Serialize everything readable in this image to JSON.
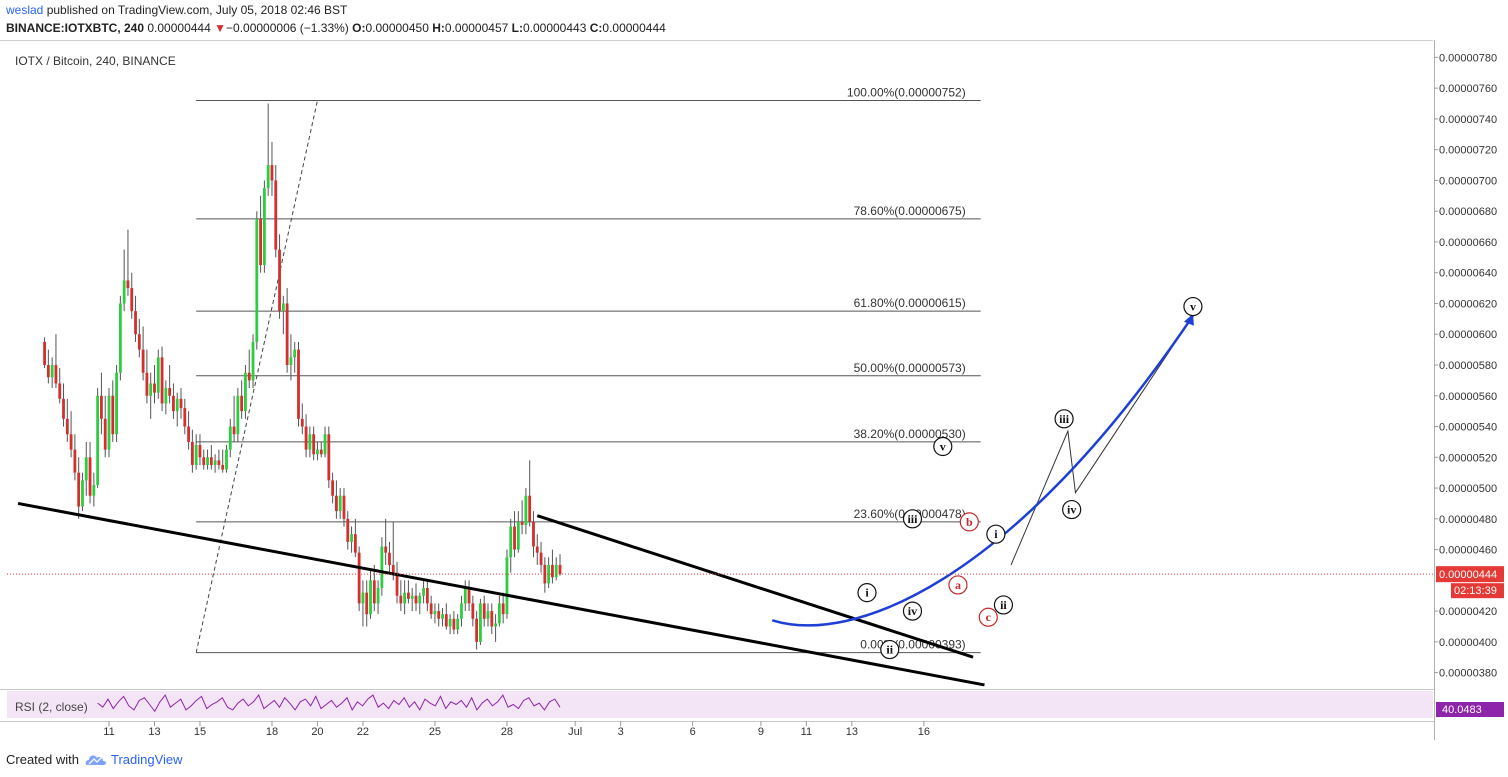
{
  "header": {
    "author": "weslad",
    "published_text": "published on TradingView.com, July 05, 2018 02:46 BST",
    "symbol_line": "BINANCE:IOTXBTC, 240",
    "last": "0.00000444",
    "change_arrow": "▼",
    "change": "−0.00000006 (−1.33%)",
    "o_label": "O:",
    "o": "0.00000450",
    "h_label": "H:",
    "h": "0.00000457",
    "l_label": "L:",
    "l": "0.00000443",
    "c_label": "C:",
    "c": "0.00000444"
  },
  "footer": {
    "created_with": "Created with",
    "brand": "TradingView"
  },
  "chart_data": {
    "type": "candlestick",
    "title": "IOTX / Bitcoin, 240, BINANCE",
    "ylim": [
      3.7e-06,
      7.9e-06
    ],
    "y_ticks": [
      "0.00000780",
      "0.00000760",
      "0.00000740",
      "0.00000720",
      "0.00000700",
      "0.00000680",
      "0.00000660",
      "0.00000640",
      "0.00000620",
      "0.00000600",
      "0.00000580",
      "0.00000560",
      "0.00000540",
      "0.00000520",
      "0.00000500",
      "0.00000480",
      "0.00000460",
      "0.00000420",
      "0.00000400",
      "0.00000380"
    ],
    "x_ticks": [
      {
        "label": "11",
        "bar": 25
      },
      {
        "label": "13",
        "bar": 37
      },
      {
        "label": "15",
        "bar": 49
      },
      {
        "label": "18",
        "bar": 68
      },
      {
        "label": "20",
        "bar": 80
      },
      {
        "label": "22",
        "bar": 92
      },
      {
        "label": "25",
        "bar": 111
      },
      {
        "label": "28",
        "bar": 130
      },
      {
        "label": "Jul",
        "bar": 148
      },
      {
        "label": "3",
        "bar": 160
      },
      {
        "label": "6",
        "bar": 179
      },
      {
        "label": "9",
        "bar": 197
      },
      {
        "label": "11",
        "bar": 209
      },
      {
        "label": "13",
        "bar": 221
      },
      {
        "label": "16",
        "bar": 240
      }
    ],
    "bar_start": 8,
    "colors": {
      "up": "#2ecc40",
      "down": "#d32f2f",
      "wick": "#555555",
      "fib": "#555555",
      "curve": "#1e3fd6",
      "price": "#e53935"
    },
    "candles": [
      [
        5.95e-06,
        5.98e-06,
        5.78e-06,
        5.8e-06
      ],
      [
        5.8e-06,
        5.9e-06,
        5.68e-06,
        5.72e-06
      ],
      [
        5.72e-06,
        5.85e-06,
        5.65e-06,
        5.8e-06
      ],
      [
        5.8e-06,
        6e-06,
        5.65e-06,
        5.68e-06
      ],
      [
        5.68e-06,
        5.78e-06,
        5.55e-06,
        5.58e-06
      ],
      [
        5.58e-06,
        5.68e-06,
        5.4e-06,
        5.45e-06
      ],
      [
        5.45e-06,
        5.58e-06,
        5.3e-06,
        5.35e-06
      ],
      [
        5.35e-06,
        5.5e-06,
        5.2e-06,
        5.25e-06
      ],
      [
        5.25e-06,
        5.35e-06,
        5.05e-06,
        5.1e-06
      ],
      [
        5.1e-06,
        5.2e-06,
        4.8e-06,
        4.88e-06
      ],
      [
        4.88e-06,
        5.1e-06,
        4.85e-06,
        5.05e-06
      ],
      [
        5.05e-06,
        5.3e-06,
        4.95e-06,
        5.2e-06
      ],
      [
        5.2e-06,
        5.3e-06,
        4.9e-06,
        4.95e-06
      ],
      [
        4.95e-06,
        5.1e-06,
        4.88e-06,
        5.02e-06
      ],
      [
        5.02e-06,
        5.65e-06,
        5e-06,
        5.6e-06
      ],
      [
        5.6e-06,
        5.75e-06,
        5.35e-06,
        5.45e-06
      ],
      [
        5.45e-06,
        5.6e-06,
        5.2e-06,
        5.25e-06
      ],
      [
        5.25e-06,
        5.65e-06,
        5.2e-06,
        5.6e-06
      ],
      [
        5.6e-06,
        5.7e-06,
        5.3e-06,
        5.35e-06
      ],
      [
        5.35e-06,
        5.8e-06,
        5.3e-06,
        5.75e-06
      ],
      [
        5.75e-06,
        6.25e-06,
        5.7e-06,
        6.2e-06
      ],
      [
        6.2e-06,
        6.55e-06,
        6.15e-06,
        6.35e-06
      ],
      [
        6.35e-06,
        6.68e-06,
        6.25e-06,
        6.3e-06
      ],
      [
        6.3e-06,
        6.4e-06,
        6.1e-06,
        6.15e-06
      ],
      [
        6.15e-06,
        6.25e-06,
        5.95e-06,
        6e-06
      ],
      [
        6e-06,
        6.1e-06,
        5.85e-06,
        5.9e-06
      ],
      [
        5.9e-06,
        6.05e-06,
        5.7e-06,
        5.75e-06
      ],
      [
        5.75e-06,
        5.9e-06,
        5.55e-06,
        5.6e-06
      ],
      [
        5.6e-06,
        5.75e-06,
        5.45e-06,
        5.68e-06
      ],
      [
        5.68e-06,
        5.8e-06,
        5.55e-06,
        5.62e-06
      ],
      [
        5.62e-06,
        5.9e-06,
        5.58e-06,
        5.85e-06
      ],
      [
        5.85e-06,
        5.92e-06,
        5.5e-06,
        5.55e-06
      ],
      [
        5.55e-06,
        5.7e-06,
        5.48e-06,
        5.65e-06
      ],
      [
        5.65e-06,
        5.8e-06,
        5.55e-06,
        5.6e-06
      ],
      [
        5.6e-06,
        5.68e-06,
        5.45e-06,
        5.5e-06
      ],
      [
        5.5e-06,
        5.62e-06,
        5.4e-06,
        5.58e-06
      ],
      [
        5.58e-06,
        5.65e-06,
        5.45e-06,
        5.52e-06
      ],
      [
        5.52e-06,
        5.58e-06,
        5.35e-06,
        5.4e-06
      ],
      [
        5.4e-06,
        5.5e-06,
        5.25e-06,
        5.3e-06
      ],
      [
        5.3e-06,
        5.38e-06,
        5.1e-06,
        5.15e-06
      ],
      [
        5.15e-06,
        5.35e-06,
        5.12e-06,
        5.28e-06
      ],
      [
        5.28e-06,
        5.35e-06,
        5.15e-06,
        5.2e-06
      ],
      [
        5.2e-06,
        5.25e-06,
        5.12e-06,
        5.15e-06
      ],
      [
        5.15e-06,
        5.25e-06,
        5.12e-06,
        5.2e-06
      ],
      [
        5.2e-06,
        5.28e-06,
        5.12e-06,
        5.15e-06
      ],
      [
        5.15e-06,
        5.22e-06,
        5.1e-06,
        5.18e-06
      ],
      [
        5.18e-06,
        5.25e-06,
        5.12e-06,
        5.15e-06
      ],
      [
        5.15e-06,
        5.25e-06,
        5.1e-06,
        5.12e-06
      ],
      [
        5.12e-06,
        5.28e-06,
        5.1e-06,
        5.25e-06
      ],
      [
        5.25e-06,
        5.45e-06,
        5.2e-06,
        5.4e-06
      ],
      [
        5.4e-06,
        5.6e-06,
        5.3e-06,
        5.35e-06
      ],
      [
        5.35e-06,
        5.65e-06,
        5.3e-06,
        5.6e-06
      ],
      [
        5.6e-06,
        5.7e-06,
        5.45e-06,
        5.5e-06
      ],
      [
        5.5e-06,
        5.8e-06,
        5.45e-06,
        5.75e-06
      ],
      [
        5.75e-06,
        5.9e-06,
        5.65e-06,
        5.7e-06
      ],
      [
        5.7e-06,
        6e-06,
        5.65e-06,
        5.95e-06
      ],
      [
        5.95e-06,
        6.8e-06,
        5.9e-06,
        6.75e-06
      ],
      [
        6.75e-06,
        6.9e-06,
        6.4e-06,
        6.45e-06
      ],
      [
        6.45e-06,
        7e-06,
        6.4e-06,
        6.95e-06
      ],
      [
        6.95e-06,
        7.5e-06,
        6.9e-06,
        7.1e-06
      ],
      [
        7.1e-06,
        7.25e-06,
        6.9e-06,
        7e-06
      ],
      [
        7e-06,
        7.1e-06,
        6.5e-06,
        6.55e-06
      ],
      [
        6.55e-06,
        6.65e-06,
        6.1e-06,
        6.15e-06
      ],
      [
        6.15e-06,
        6.25e-06,
        6e-06,
        6.2e-06
      ],
      [
        6.2e-06,
        6.3e-06,
        5.75e-06,
        5.8e-06
      ],
      [
        5.8e-06,
        6e-06,
        5.7e-06,
        5.85e-06
      ],
      [
        5.85e-06,
        5.95e-06,
        5.75e-06,
        5.9e-06
      ],
      [
        5.9e-06,
        5.95e-06,
        5.4e-06,
        5.45e-06
      ],
      [
        5.45e-06,
        5.55e-06,
        5.35e-06,
        5.4e-06
      ],
      [
        5.4e-06,
        5.48e-06,
        5.2e-06,
        5.25e-06
      ],
      [
        5.25e-06,
        5.4e-06,
        5.2e-06,
        5.35e-06
      ],
      [
        5.35e-06,
        5.4e-06,
        5.18e-06,
        5.22e-06
      ],
      [
        5.22e-06,
        5.3e-06,
        5.18e-06,
        5.25e-06
      ],
      [
        5.25e-06,
        5.3e-06,
        5.2e-06,
        5.22e-06
      ],
      [
        5.22e-06,
        5.4e-06,
        5.2e-06,
        5.35e-06
      ],
      [
        5.35e-06,
        5.4e-06,
        5e-06,
        5.05e-06
      ],
      [
        5.05e-06,
        5.1e-06,
        4.9e-06,
        4.95e-06
      ],
      [
        4.95e-06,
        5.05e-06,
        4.8e-06,
        4.85e-06
      ],
      [
        4.85e-06,
        5e-06,
        4.8e-06,
        4.95e-06
      ],
      [
        4.95e-06,
        5e-06,
        4.75e-06,
        4.8e-06
      ],
      [
        4.8e-06,
        4.85e-06,
        4.6e-06,
        4.65e-06
      ],
      [
        4.65e-06,
        4.75e-06,
        4.58e-06,
        4.7e-06
      ],
      [
        4.7e-06,
        4.8e-06,
        4.55e-06,
        4.58e-06
      ],
      [
        4.58e-06,
        4.62e-06,
        4.2e-06,
        4.25e-06
      ],
      [
        4.25e-06,
        4.4e-06,
        4.1e-06,
        4.32e-06
      ],
      [
        4.32e-06,
        4.4e-06,
        4.1e-06,
        4.18e-06
      ],
      [
        4.18e-06,
        4.48e-06,
        4.15e-06,
        4.4e-06
      ],
      [
        4.4e-06,
        4.5e-06,
        4.2e-06,
        4.25e-06
      ],
      [
        4.25e-06,
        4.4e-06,
        4.18e-06,
        4.35e-06
      ],
      [
        4.35e-06,
        4.68e-06,
        4.3e-06,
        4.62e-06
      ],
      [
        4.62e-06,
        4.8e-06,
        4.5e-06,
        4.58e-06
      ],
      [
        4.58e-06,
        4.65e-06,
        4.45e-06,
        4.5e-06
      ],
      [
        4.5e-06,
        4.78e-06,
        4.4e-06,
        4.45e-06
      ],
      [
        4.45e-06,
        4.52e-06,
        4.25e-06,
        4.3e-06
      ],
      [
        4.3e-06,
        4.4e-06,
        4.2e-06,
        4.25e-06
      ],
      [
        4.25e-06,
        4.4e-06,
        4.18e-06,
        4.32e-06
      ],
      [
        4.32e-06,
        4.4e-06,
        4.25e-06,
        4.28e-06
      ],
      [
        4.28e-06,
        4.35e-06,
        4.2e-06,
        4.3e-06
      ],
      [
        4.3e-06,
        4.38e-06,
        4.2e-06,
        4.25e-06
      ],
      [
        4.25e-06,
        4.32e-06,
        4.18e-06,
        4.3e-06
      ],
      [
        4.3e-06,
        4.4e-06,
        4.25e-06,
        4.35e-06
      ],
      [
        4.35e-06,
        4.4e-06,
        4.2e-06,
        4.25e-06
      ],
      [
        4.25e-06,
        4.3e-06,
        4.15e-06,
        4.18e-06
      ],
      [
        4.18e-06,
        4.25e-06,
        4.12e-06,
        4.2e-06
      ],
      [
        4.2e-06,
        4.25e-06,
        4.1e-06,
        4.15e-06
      ],
      [
        4.15e-06,
        4.22e-06,
        4.1e-06,
        4.18e-06
      ],
      [
        4.18e-06,
        4.25e-06,
        4.08e-06,
        4.1e-06
      ],
      [
        4.1e-06,
        4.18e-06,
        4.05e-06,
        4.15e-06
      ],
      [
        4.15e-06,
        4.2e-06,
        4.05e-06,
        4.08e-06
      ],
      [
        4.08e-06,
        4.18e-06,
        4.05e-06,
        4.15e-06
      ],
      [
        4.15e-06,
        4.3e-06,
        4.1e-06,
        4.25e-06
      ],
      [
        4.25e-06,
        4.4e-06,
        4.2e-06,
        4.35e-06
      ],
      [
        4.35e-06,
        4.4e-06,
        4.2e-06,
        4.25e-06
      ],
      [
        4.25e-06,
        4.3e-06,
        4.1e-06,
        4.15e-06
      ],
      [
        4.15e-06,
        4.2e-06,
        3.95e-06,
        4e-06
      ],
      [
        4e-06,
        4.28e-06,
        3.98e-06,
        4.25e-06
      ],
      [
        4.25e-06,
        4.3e-06,
        4.1e-06,
        4.15e-06
      ],
      [
        4.15e-06,
        4.25e-06,
        4.1e-06,
        4.2e-06
      ],
      [
        4.2e-06,
        4.25e-06,
        4.05e-06,
        4.1e-06
      ],
      [
        4.1e-06,
        4.18e-06,
        4e-06,
        4.12e-06
      ],
      [
        4.12e-06,
        4.3e-06,
        4.1e-06,
        4.25e-06
      ],
      [
        4.25e-06,
        4.32e-06,
        4.12e-06,
        4.18e-06
      ],
      [
        4.18e-06,
        4.6e-06,
        4.15e-06,
        4.55e-06
      ],
      [
        4.55e-06,
        4.8e-06,
        4.45e-06,
        4.75e-06
      ],
      [
        4.75e-06,
        4.85e-06,
        4.55e-06,
        4.6e-06
      ],
      [
        4.6e-06,
        4.85e-06,
        4.58e-06,
        4.78e-06
      ],
      [
        4.78e-06,
        4.92e-06,
        4.7e-06,
        4.76e-06
      ],
      [
        4.76e-06,
        5e-06,
        4.7e-06,
        4.95e-06
      ],
      [
        4.95e-06,
        5.18e-06,
        4.75e-06,
        4.78e-06
      ],
      [
        4.78e-06,
        4.85e-06,
        4.55e-06,
        4.62e-06
      ],
      [
        4.62e-06,
        4.7e-06,
        4.5e-06,
        4.58e-06
      ],
      [
        4.58e-06,
        4.65e-06,
        4.45e-06,
        4.5e-06
      ],
      [
        4.5e-06,
        4.55e-06,
        4.32e-06,
        4.38e-06
      ],
      [
        4.38e-06,
        4.55e-06,
        4.35e-06,
        4.5e-06
      ],
      [
        4.5e-06,
        4.6e-06,
        4.38e-06,
        4.42e-06
      ],
      [
        4.42e-06,
        4.55e-06,
        4.4e-06,
        4.5e-06
      ],
      [
        4.5e-06,
        4.57e-06,
        4.43e-06,
        4.44e-06
      ]
    ],
    "fib_levels": [
      {
        "label": "100.00%(0.00000752)",
        "value": 7.52e-06
      },
      {
        "label": "78.60%(0.00000675)",
        "value": 6.75e-06
      },
      {
        "label": "61.80%(0.00000615)",
        "value": 6.15e-06
      },
      {
        "label": "50.00%(0.00000573)",
        "value": 5.73e-06
      },
      {
        "label": "38.20%(0.00000530)",
        "value": 5.3e-06
      },
      {
        "label": "23.60%(0.00000478)",
        "value": 4.78e-06
      },
      {
        "label": "0.00%(0.00000393)",
        "value": 3.93e-06
      }
    ],
    "fib_anchor": {
      "start_bar": 48,
      "end_bar": 255
    },
    "fib_trend": {
      "from": {
        "bar": 48,
        "value": 3.93e-06
      },
      "to": {
        "bar": 80,
        "value": 7.52e-06
      }
    },
    "trendlines": [
      {
        "from": {
          "bar": 1,
          "value": 4.9e-06
        },
        "to": {
          "bar": 256,
          "value": 3.72e-06
        }
      },
      {
        "from": {
          "bar": 138,
          "value": 4.82e-06
        },
        "to": {
          "bar": 253,
          "value": 3.9e-06
        }
      }
    ],
    "projection_path": [
      {
        "bar": 263,
        "value": 4.5e-06
      },
      {
        "bar": 278,
        "value": 5.37e-06
      },
      {
        "bar": 280,
        "value": 4.97e-06
      },
      {
        "bar": 311,
        "value": 6.12e-06
      }
    ],
    "curve": [
      {
        "bar": 200,
        "value": 4.14e-06
      },
      {
        "bar": 221,
        "value": 3.98e-06
      },
      {
        "bar": 263,
        "value": 4.37e-06
      },
      {
        "bar": 311,
        "value": 6.12e-06
      }
    ],
    "wave_labels": [
      {
        "text": "i",
        "bar": 225,
        "value": 4.32e-06,
        "color": "black"
      },
      {
        "text": "ii",
        "bar": 231,
        "value": 3.95e-06,
        "color": "black"
      },
      {
        "text": "iii",
        "bar": 237,
        "value": 4.8e-06,
        "color": "black"
      },
      {
        "text": "iv",
        "bar": 237,
        "value": 4.2e-06,
        "color": "black"
      },
      {
        "text": "v",
        "bar": 245,
        "value": 5.27e-06,
        "color": "black"
      },
      {
        "text": "a",
        "bar": 249,
        "value": 4.37e-06,
        "color": "red"
      },
      {
        "text": "b",
        "bar": 252,
        "value": 4.78e-06,
        "color": "red"
      },
      {
        "text": "c",
        "bar": 257,
        "value": 4.16e-06,
        "color": "red"
      },
      {
        "text": "i",
        "bar": 259,
        "value": 4.7e-06,
        "color": "black"
      },
      {
        "text": "ii",
        "bar": 261,
        "value": 4.24e-06,
        "color": "black"
      },
      {
        "text": "iii",
        "bar": 277,
        "value": 5.45e-06,
        "color": "black"
      },
      {
        "text": "iv",
        "bar": 279,
        "value": 4.86e-06,
        "color": "black"
      },
      {
        "text": "v",
        "bar": 311,
        "value": 6.18e-06,
        "color": "black"
      }
    ],
    "last_price_label": "0.00000444",
    "countdown": "02:13:39",
    "rsi": {
      "label": "RSI (2, close)",
      "value_label": "40.0483",
      "values": [
        55,
        40,
        70,
        35,
        60,
        80,
        45,
        30,
        65,
        75,
        50,
        25,
        60,
        85,
        40,
        55,
        70,
        30,
        45,
        65,
        80,
        35,
        50,
        60,
        75,
        40,
        30,
        55,
        70,
        45,
        60,
        85,
        35,
        50,
        65,
        40,
        75,
        55,
        30,
        60,
        70,
        45,
        80,
        35,
        50,
        65,
        40,
        55,
        75,
        30,
        60,
        45,
        70,
        85,
        40,
        55,
        35,
        65,
        50,
        75,
        40,
        60,
        30,
        70,
        55,
        45,
        80,
        35,
        60,
        50,
        65,
        40,
        75,
        30,
        55,
        70,
        45,
        60,
        85,
        40,
        50,
        35,
        65,
        75,
        45,
        55,
        30,
        60,
        70,
        40
      ]
    }
  }
}
